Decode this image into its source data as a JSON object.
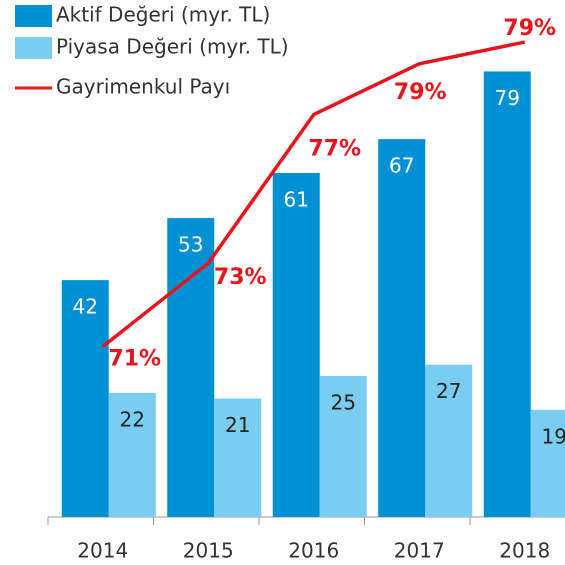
{
  "chart_data": {
    "type": "bar",
    "categories": [
      "2014",
      "2015",
      "2016",
      "2017",
      "2018"
    ],
    "series": [
      {
        "name": "Aktif Değeri (myr. TL)",
        "color": "#0091d5",
        "values": [
          42,
          53,
          61,
          67,
          79
        ]
      },
      {
        "name": "Piyasa Değeri (myr. TL)",
        "color": "#78cdf0",
        "values": [
          22,
          21,
          25,
          27,
          19
        ]
      },
      {
        "name": "Gayrimenkul Payı",
        "color": "#e8141b",
        "type": "line",
        "axis": "y2",
        "values": [
          71.0,
          73.3,
          77.4,
          78.8,
          79.4
        ],
        "value_labels": [
          "71%",
          "73%",
          "77%",
          "79%",
          "79%"
        ]
      }
    ],
    "ylim": [
      0,
      90
    ],
    "y2lim": [
      66.3,
      80.3
    ],
    "grid": false,
    "legend": "top-left"
  }
}
